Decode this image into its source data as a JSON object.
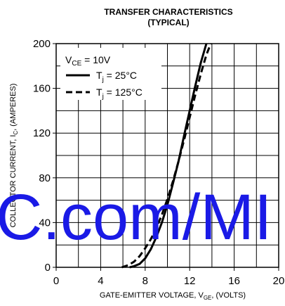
{
  "chart_data": {
    "type": "line",
    "title": "TRANSFER CHARACTERISTICS",
    "subtitle": "(TYPICAL)",
    "xlabel": "GATE-EMITTER VOLTAGE, V",
    "xlabel_sub": "GE",
    "xlabel_suffix": ", (VOLTS)",
    "ylabel": "COLLECTOR CURRENT, I",
    "ylabel_sub": "C",
    "ylabel_suffix": ", (AMPERES)",
    "xlim": [
      0,
      20
    ],
    "ylim": [
      0,
      200
    ],
    "x_ticks": [
      0,
      4,
      8,
      12,
      16,
      20
    ],
    "x_tick_labels": [
      "0",
      "4",
      "8",
      "12",
      "16",
      "20"
    ],
    "y_ticks": [
      0,
      40,
      80,
      120,
      160,
      200
    ],
    "y_tick_labels": [
      "0",
      "40",
      "80",
      "120",
      "160",
      "200"
    ],
    "grid": true,
    "legend_position": "top-left",
    "legend_condition": {
      "prefix": "V",
      "sub": "CE",
      "text": " = 10V"
    },
    "series": [
      {
        "name_prefix": "T",
        "name_sub": "j",
        "name_text": " = 25°C",
        "style": "solid",
        "x": [
          6.6,
          7.0,
          7.5,
          8.0,
          8.5,
          9.0,
          9.5,
          10.0,
          10.5,
          11.0,
          11.5,
          12.0,
          12.5,
          13.0,
          13.5
        ],
        "y": [
          0,
          1,
          3,
          8,
          16,
          27,
          40,
          56,
          75,
          95,
          118,
          140,
          162,
          183,
          200
        ]
      },
      {
        "name_prefix": "T",
        "name_sub": "j",
        "name_text": " = 125°C",
        "style": "dashed",
        "x": [
          5.9,
          6.5,
          7.0,
          7.5,
          8.0,
          8.5,
          9.0,
          9.5,
          10.0,
          10.5,
          11.0,
          11.5,
          12.0,
          12.5,
          13.0,
          13.5,
          13.9
        ],
        "y": [
          0,
          2,
          5,
          10,
          17,
          25,
          35,
          47,
          61,
          77,
          95,
          114,
          134,
          154,
          173,
          190,
          200
        ]
      }
    ],
    "watermark": "C.com/MI"
  }
}
